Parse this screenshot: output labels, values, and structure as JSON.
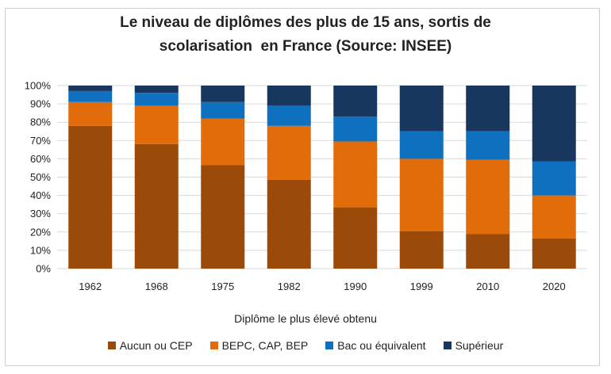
{
  "chart_data": {
    "type": "bar",
    "stacked": true,
    "title_lines": [
      "Le niveau de diplômes des plus de 15 ans, sortis de",
      "scolarisation  en France (Source: INSEE)"
    ],
    "xlabel": "Diplôme le plus élevé obtenu",
    "ylabel": "",
    "ylim": [
      0,
      100
    ],
    "yticks": [
      "0%",
      "10%",
      "20%",
      "30%",
      "40%",
      "50%",
      "60%",
      "70%",
      "80%",
      "90%",
      "100%"
    ],
    "grid": true,
    "legend_position": "bottom",
    "categories": [
      "1962",
      "1968",
      "1975",
      "1982",
      "1990",
      "1999",
      "2010",
      "2020"
    ],
    "series": [
      {
        "name": "Aucun ou CEP",
        "color": "#9c4a0a",
        "values": [
          78,
          68,
          56.5,
          48.5,
          33.5,
          20.5,
          19,
          16.5
        ]
      },
      {
        "name": "BEPC, CAP, BEP",
        "color": "#e36c0a",
        "values": [
          13,
          21,
          25.5,
          29.5,
          36,
          39.5,
          40.5,
          23.5
        ]
      },
      {
        "name": "Bac ou équivalent",
        "color": "#0f70c0",
        "values": [
          6,
          7,
          9,
          11,
          13.5,
          15,
          15.5,
          18.5
        ]
      },
      {
        "name": "Supérieur",
        "color": "#17375e",
        "values": [
          3,
          4,
          9,
          11,
          17,
          25,
          25,
          41.5
        ]
      }
    ]
  }
}
